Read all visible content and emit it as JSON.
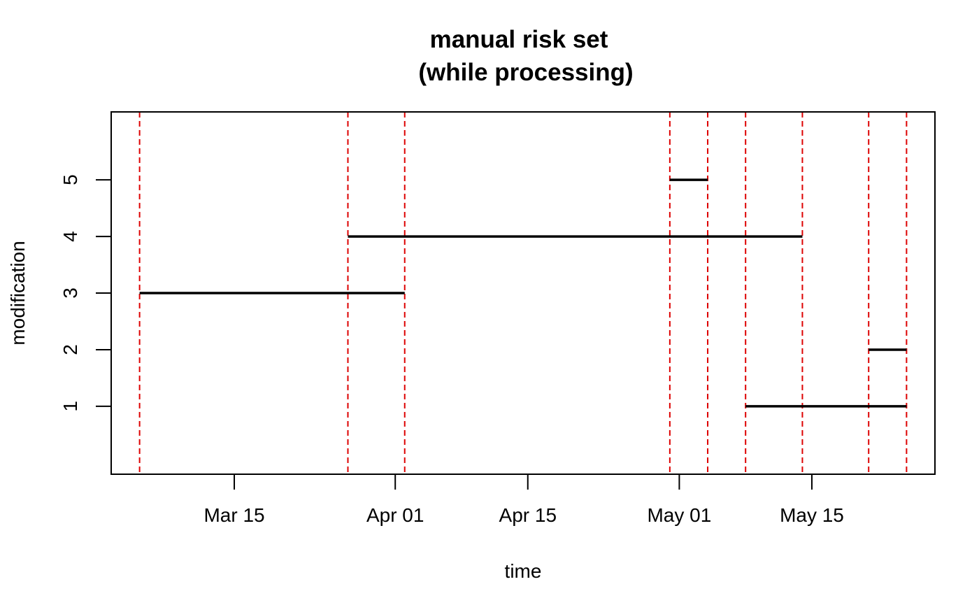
{
  "chart_data": {
    "type": "segments",
    "title": [
      "manual risk set",
      "(while processing)"
    ],
    "xlabel": "time",
    "ylabel": "modification",
    "x_ticks": [
      {
        "date": "2015-03-15",
        "label": "Mar 15"
      },
      {
        "date": "2015-04-01",
        "label": "Apr 01"
      },
      {
        "date": "2015-04-15",
        "label": "Apr 15"
      },
      {
        "date": "2015-05-01",
        "label": "May 01"
      },
      {
        "date": "2015-05-15",
        "label": "May 15"
      }
    ],
    "y_ticks": [
      1,
      2,
      3,
      4,
      5
    ],
    "xlim": [
      "2015-03-02",
      "2015-05-28"
    ],
    "ylim": [
      -0.2,
      6.2
    ],
    "segments": [
      {
        "y": 3,
        "start": "2015-03-05",
        "end": "2015-04-02"
      },
      {
        "y": 4,
        "start": "2015-03-27",
        "end": "2015-05-14"
      },
      {
        "y": 5,
        "start": "2015-04-30",
        "end": "2015-05-04"
      },
      {
        "y": 1,
        "start": "2015-05-08",
        "end": "2015-05-25"
      },
      {
        "y": 2,
        "start": "2015-05-21",
        "end": "2015-05-25"
      }
    ],
    "vlines": [
      "2015-03-05",
      "2015-03-27",
      "2015-04-02",
      "2015-04-30",
      "2015-05-04",
      "2015-05-08",
      "2015-05-14",
      "2015-05-21",
      "2015-05-25"
    ],
    "colors": {
      "segment": "#000000",
      "vline": "#dd0000",
      "frame": "#000000"
    }
  }
}
